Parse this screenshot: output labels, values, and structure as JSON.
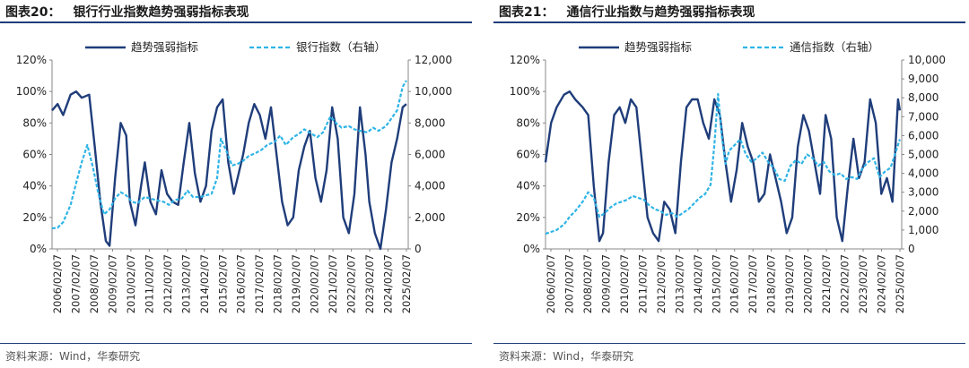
{
  "panels": [
    {
      "title_no": "图表20：",
      "title_text": "银行行业指数趋势强弱指标表现",
      "source": "资料来源：Wind，华泰研究"
    },
    {
      "title_no": "图表21：",
      "title_text": "通信行业指数与趋势强弱指标表现",
      "source": "资料来源：Wind，华泰研究"
    }
  ],
  "colors": {
    "series1": "#1f3d7a",
    "series2": "#2fb4e6",
    "rule": "#1f3d7a"
  },
  "chart_data": [
    {
      "type": "line",
      "x_ticks": [
        "2006/02/07",
        "2007/02/07",
        "2008/02/07",
        "2009/02/07",
        "2010/02/07",
        "2011/02/07",
        "2012/02/07",
        "2013/02/07",
        "2014/02/07",
        "2015/02/07",
        "2016/02/07",
        "2017/02/07",
        "2018/02/07",
        "2019/02/07",
        "2020/02/07",
        "2021/02/07",
        "2022/02/07",
        "2023/02/07",
        "2024/02/07",
        "2025/02/07"
      ],
      "xlim": [
        2006.0,
        2025.2
      ],
      "y_left": {
        "ticks": [
          "0%",
          "20%",
          "40%",
          "60%",
          "80%",
          "100%",
          "120%"
        ],
        "lim": [
          0,
          1.2
        ]
      },
      "y_right": {
        "ticks": [
          "0",
          "2,000",
          "4,000",
          "6,000",
          "8,000",
          "10,000",
          "12,000"
        ],
        "lim": [
          0,
          12000
        ]
      },
      "legend": [
        {
          "name": "趋势强弱指标",
          "style": "solid",
          "axis": "left"
        },
        {
          "name": "银行指数（右轴）",
          "style": "dashed",
          "axis": "right"
        }
      ],
      "series": [
        {
          "name": "趋势强弱指标",
          "axis": "left",
          "x": [
            2006.0,
            2006.3,
            2006.6,
            2007.0,
            2007.3,
            2007.6,
            2008.0,
            2008.3,
            2008.6,
            2008.9,
            2009.1,
            2009.4,
            2009.7,
            2010.0,
            2010.2,
            2010.5,
            2010.8,
            2011.0,
            2011.3,
            2011.6,
            2011.9,
            2012.2,
            2012.5,
            2012.8,
            2013.1,
            2013.4,
            2013.7,
            2014.0,
            2014.3,
            2014.6,
            2014.9,
            2015.2,
            2015.5,
            2015.8,
            2016.0,
            2016.3,
            2016.6,
            2016.9,
            2017.2,
            2017.5,
            2017.8,
            2018.1,
            2018.4,
            2018.7,
            2019.0,
            2019.3,
            2019.6,
            2019.9,
            2020.2,
            2020.5,
            2020.8,
            2021.1,
            2021.4,
            2021.7,
            2022.0,
            2022.3,
            2022.6,
            2022.9,
            2023.1,
            2023.4,
            2023.7,
            2024.0,
            2024.3,
            2024.6,
            2024.9,
            2025.1
          ],
          "y": [
            0.88,
            0.92,
            0.85,
            0.98,
            1.0,
            0.96,
            0.98,
            0.65,
            0.3,
            0.05,
            0.02,
            0.45,
            0.8,
            0.72,
            0.3,
            0.15,
            0.4,
            0.55,
            0.3,
            0.22,
            0.5,
            0.35,
            0.3,
            0.28,
            0.55,
            0.8,
            0.48,
            0.3,
            0.4,
            0.75,
            0.9,
            0.95,
            0.55,
            0.35,
            0.45,
            0.6,
            0.8,
            0.92,
            0.85,
            0.7,
            0.9,
            0.6,
            0.3,
            0.15,
            0.2,
            0.5,
            0.65,
            0.75,
            0.45,
            0.3,
            0.5,
            0.9,
            0.7,
            0.2,
            0.1,
            0.35,
            0.9,
            0.6,
            0.3,
            0.1,
            0.0,
            0.25,
            0.55,
            0.7,
            0.9,
            0.92
          ]
        },
        {
          "name": "银行指数（右轴）",
          "axis": "right",
          "x": [
            2006.0,
            2006.3,
            2006.6,
            2007.0,
            2007.3,
            2007.6,
            2007.9,
            2008.2,
            2008.5,
            2008.8,
            2009.1,
            2009.4,
            2009.7,
            2010.0,
            2010.3,
            2010.6,
            2011.0,
            2011.3,
            2011.6,
            2012.0,
            2012.3,
            2012.6,
            2013.0,
            2013.3,
            2013.6,
            2014.0,
            2014.3,
            2014.6,
            2014.9,
            2015.1,
            2015.4,
            2015.7,
            2016.0,
            2016.3,
            2016.6,
            2017.0,
            2017.3,
            2017.6,
            2018.0,
            2018.3,
            2018.6,
            2019.0,
            2019.3,
            2019.6,
            2020.0,
            2020.3,
            2020.6,
            2021.0,
            2021.3,
            2021.6,
            2022.0,
            2022.3,
            2022.6,
            2023.0,
            2023.3,
            2023.6,
            2024.0,
            2024.3,
            2024.6,
            2024.9,
            2025.1
          ],
          "y": [
            1300,
            1350,
            1700,
            2800,
            4200,
            5500,
            6600,
            5200,
            3500,
            2200,
            2500,
            3200,
            3600,
            3400,
            3000,
            2900,
            3300,
            3200,
            3100,
            3000,
            2800,
            3100,
            3200,
            3700,
            3300,
            3300,
            3400,
            3500,
            4500,
            7000,
            6200,
            5300,
            5400,
            5600,
            5900,
            6100,
            6300,
            6600,
            6800,
            7200,
            6600,
            7100,
            7300,
            7600,
            7300,
            7100,
            7400,
            8400,
            8000,
            7700,
            7800,
            7600,
            7500,
            7400,
            7700,
            7500,
            7800,
            8300,
            8800,
            10300,
            10700
          ]
        }
      ]
    },
    {
      "type": "line",
      "x_ticks": [
        "2006/02/07",
        "2007/02/07",
        "2008/02/07",
        "2009/02/07",
        "2010/02/07",
        "2011/02/07",
        "2012/02/07",
        "2013/02/07",
        "2014/02/07",
        "2015/02/07",
        "2016/02/07",
        "2017/02/07",
        "2018/02/07",
        "2019/02/07",
        "2020/02/07",
        "2021/02/07",
        "2022/02/07",
        "2023/02/07",
        "2024/02/07",
        "2025/02/07"
      ],
      "xlim": [
        2006.0,
        2025.2
      ],
      "y_left": {
        "ticks": [
          "0%",
          "20%",
          "40%",
          "60%",
          "80%",
          "100%",
          "120%"
        ],
        "lim": [
          0,
          1.2
        ]
      },
      "y_right": {
        "ticks": [
          "0",
          "1,000",
          "2,000",
          "3,000",
          "4,000",
          "5,000",
          "6,000",
          "7,000",
          "8,000",
          "9,000",
          "10,000"
        ],
        "lim": [
          0,
          10000
        ]
      },
      "legend": [
        {
          "name": "趋势强弱指标",
          "style": "solid",
          "axis": "left"
        },
        {
          "name": "通信指数（右轴）",
          "style": "dashed",
          "axis": "right"
        }
      ],
      "series": [
        {
          "name": "趋势强弱指标",
          "axis": "left",
          "x": [
            2006.0,
            2006.3,
            2006.6,
            2007.0,
            2007.3,
            2007.6,
            2008.0,
            2008.3,
            2008.6,
            2008.9,
            2009.1,
            2009.4,
            2009.7,
            2010.0,
            2010.3,
            2010.6,
            2010.9,
            2011.2,
            2011.5,
            2011.8,
            2012.1,
            2012.4,
            2012.7,
            2013.0,
            2013.3,
            2013.6,
            2013.9,
            2014.2,
            2014.5,
            2014.8,
            2015.1,
            2015.4,
            2015.7,
            2016.0,
            2016.3,
            2016.6,
            2016.9,
            2017.2,
            2017.5,
            2017.8,
            2018.1,
            2018.4,
            2018.7,
            2019.0,
            2019.3,
            2019.6,
            2019.9,
            2020.2,
            2020.5,
            2020.8,
            2021.1,
            2021.4,
            2021.7,
            2022.0,
            2022.3,
            2022.6,
            2022.9,
            2023.2,
            2023.5,
            2023.8,
            2024.1,
            2024.4,
            2024.7,
            2025.0,
            2025.1
          ],
          "y": [
            0.55,
            0.8,
            0.9,
            0.98,
            1.0,
            0.95,
            0.9,
            0.85,
            0.4,
            0.05,
            0.1,
            0.55,
            0.85,
            0.9,
            0.8,
            0.95,
            0.9,
            0.55,
            0.2,
            0.1,
            0.05,
            0.3,
            0.25,
            0.1,
            0.55,
            0.9,
            0.95,
            0.95,
            0.8,
            0.7,
            0.95,
            0.85,
            0.55,
            0.3,
            0.5,
            0.8,
            0.65,
            0.55,
            0.3,
            0.35,
            0.6,
            0.45,
            0.3,
            0.1,
            0.2,
            0.65,
            0.85,
            0.75,
            0.55,
            0.35,
            0.85,
            0.7,
            0.2,
            0.05,
            0.4,
            0.7,
            0.45,
            0.55,
            0.95,
            0.8,
            0.35,
            0.45,
            0.3,
            0.95,
            0.88
          ]
        },
        {
          "name": "通信指数（右轴）",
          "axis": "right",
          "x": [
            2006.0,
            2006.3,
            2006.6,
            2007.0,
            2007.3,
            2007.6,
            2008.0,
            2008.3,
            2008.6,
            2008.9,
            2009.2,
            2009.5,
            2009.8,
            2010.1,
            2010.4,
            2010.7,
            2011.0,
            2011.3,
            2011.6,
            2011.9,
            2012.2,
            2012.5,
            2012.8,
            2013.1,
            2013.4,
            2013.7,
            2014.0,
            2014.3,
            2014.6,
            2014.9,
            2015.1,
            2015.3,
            2015.5,
            2015.7,
            2015.9,
            2016.2,
            2016.5,
            2016.8,
            2017.1,
            2017.4,
            2017.7,
            2018.0,
            2018.3,
            2018.6,
            2018.9,
            2019.2,
            2019.5,
            2019.8,
            2020.1,
            2020.4,
            2020.7,
            2021.0,
            2021.3,
            2021.6,
            2021.9,
            2022.2,
            2022.5,
            2022.8,
            2023.1,
            2023.4,
            2023.7,
            2024.0,
            2024.3,
            2024.6,
            2024.9,
            2025.1
          ],
          "y": [
            800,
            900,
            1000,
            1300,
            1700,
            2000,
            2500,
            3000,
            2700,
            1700,
            1900,
            2200,
            2400,
            2500,
            2600,
            2800,
            2700,
            2600,
            2300,
            2100,
            2000,
            1800,
            1900,
            1700,
            1900,
            2100,
            2400,
            2700,
            2900,
            3400,
            5500,
            8200,
            6000,
            4500,
            5200,
            5500,
            5800,
            5000,
            4600,
            4800,
            5100,
            4600,
            4300,
            3700,
            3600,
            4400,
            4700,
            4500,
            5000,
            4800,
            4400,
            4600,
            4100,
            3900,
            4000,
            3700,
            3800,
            3700,
            4300,
            4600,
            4800,
            3800,
            4100,
            4300,
            5200,
            5800
          ]
        }
      ]
    }
  ]
}
